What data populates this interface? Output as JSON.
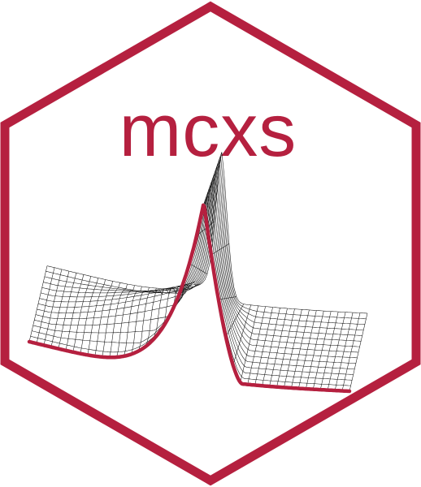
{
  "logo": {
    "title": "mcxs",
    "brand_color": "#b5203f",
    "mesh_color": "#111111",
    "background": "#ffffff",
    "shape": "hexagon"
  },
  "surface": {
    "description_icon": "density-surface-icon"
  }
}
